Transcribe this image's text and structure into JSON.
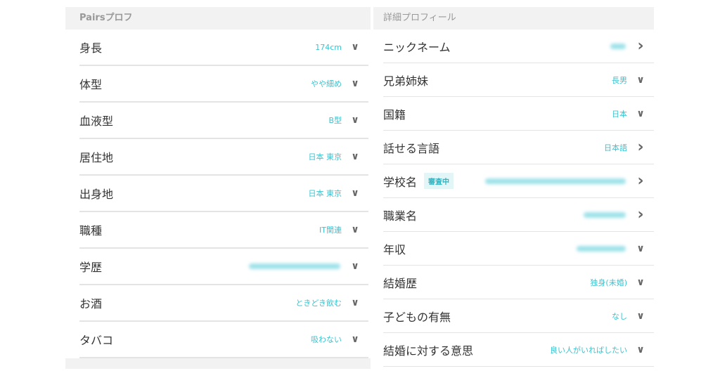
{
  "left": {
    "title": "Pairsプロフ",
    "rows": [
      {
        "label": "身長",
        "value": "174cm",
        "icon": "chevron-down"
      },
      {
        "label": "体型",
        "value": "やや細め",
        "icon": "chevron-down"
      },
      {
        "label": "血液型",
        "value": "B型",
        "icon": "chevron-down"
      },
      {
        "label": "居住地",
        "value": "日本 東京",
        "icon": "chevron-down"
      },
      {
        "label": "出身地",
        "value": "日本 東京",
        "icon": "chevron-down"
      },
      {
        "label": "職種",
        "value": "IT関連",
        "icon": "chevron-down"
      },
      {
        "label": "学歴",
        "value": null,
        "blurred": true,
        "icon": "chevron-down"
      },
      {
        "label": "お酒",
        "value": "ときどき飲む",
        "icon": "chevron-down"
      },
      {
        "label": "タバコ",
        "value": "吸わない",
        "icon": "chevron-down"
      }
    ]
  },
  "right": {
    "title": "詳細プロフィール",
    "rows": [
      {
        "label": "ニックネーム",
        "value": null,
        "blurred": true,
        "icon": "chevron-right"
      },
      {
        "label": "兄弟姉妹",
        "value": "長男",
        "icon": "chevron-down"
      },
      {
        "label": "国籍",
        "value": "日本",
        "icon": "chevron-down"
      },
      {
        "label": "話せる言語",
        "value": "日本語",
        "icon": "chevron-right"
      },
      {
        "label": "学校名",
        "badge": "審査中",
        "value": null,
        "blurred": true,
        "icon": "chevron-right"
      },
      {
        "label": "職業名",
        "value": null,
        "blurred": true,
        "icon": "chevron-right"
      },
      {
        "label": "年収",
        "value": null,
        "blurred": true,
        "icon": "chevron-down"
      },
      {
        "label": "結婚歴",
        "value": "独身(未婚)",
        "icon": "chevron-down"
      },
      {
        "label": "子どもの有無",
        "value": "なし",
        "icon": "chevron-down"
      },
      {
        "label": "結婚に対する意思",
        "value": "良い人がいればしたい",
        "icon": "chevron-down"
      }
    ]
  },
  "colors": {
    "accent": "#3cc3cf",
    "header_bg": "#f2f2f2"
  }
}
